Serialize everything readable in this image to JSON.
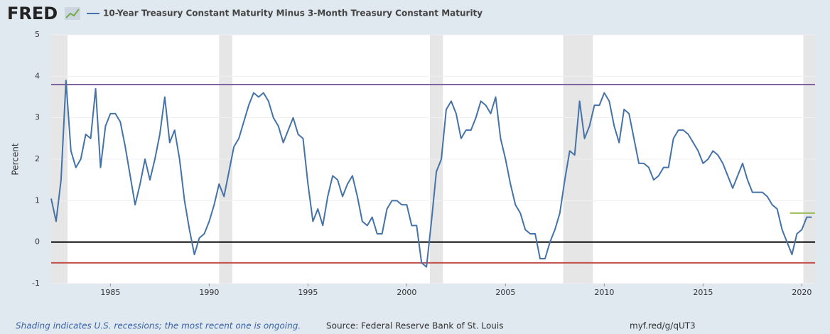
{
  "logo": "FRED",
  "chart_data": {
    "type": "line",
    "series": [
      {
        "name": "10-Year Treasury Constant Maturity Minus 3-Month Treasury Constant Maturity",
        "color": "#4572a7",
        "x": [
          1982,
          1982.25,
          1982.5,
          1982.75,
          1983,
          1983.25,
          1983.5,
          1983.75,
          1984,
          1984.25,
          1984.5,
          1984.75,
          1985,
          1985.25,
          1985.5,
          1985.75,
          1986,
          1986.25,
          1986.5,
          1986.75,
          1987,
          1987.25,
          1987.5,
          1987.75,
          1988,
          1988.25,
          1988.5,
          1988.75,
          1989,
          1989.25,
          1989.5,
          1989.75,
          1990,
          1990.25,
          1990.5,
          1990.75,
          1991,
          1991.25,
          1991.5,
          1991.75,
          1992,
          1992.25,
          1992.5,
          1992.75,
          1993,
          1993.25,
          1993.5,
          1993.75,
          1994,
          1994.25,
          1994.5,
          1994.75,
          1995,
          1995.25,
          1995.5,
          1995.75,
          1996,
          1996.25,
          1996.5,
          1996.75,
          1997,
          1997.25,
          1997.5,
          1997.75,
          1998,
          1998.25,
          1998.5,
          1998.75,
          1999,
          1999.25,
          1999.5,
          1999.75,
          2000,
          2000.25,
          2000.5,
          2000.75,
          2001,
          2001.25,
          2001.5,
          2001.75,
          2002,
          2002.25,
          2002.5,
          2002.75,
          2003,
          2003.25,
          2003.5,
          2003.75,
          2004,
          2004.25,
          2004.5,
          2004.75,
          2005,
          2005.25,
          2005.5,
          2005.75,
          2006,
          2006.25,
          2006.5,
          2006.75,
          2007,
          2007.25,
          2007.5,
          2007.75,
          2008,
          2008.25,
          2008.5,
          2008.75,
          2009,
          2009.25,
          2009.5,
          2009.75,
          2010,
          2010.25,
          2010.5,
          2010.75,
          2011,
          2011.25,
          2011.5,
          2011.75,
          2012,
          2012.25,
          2012.5,
          2012.75,
          2013,
          2013.25,
          2013.5,
          2013.75,
          2014,
          2014.25,
          2014.5,
          2014.75,
          2015,
          2015.25,
          2015.5,
          2015.75,
          2016,
          2016.25,
          2016.5,
          2016.75,
          2017,
          2017.25,
          2017.5,
          2017.75,
          2018,
          2018.25,
          2018.5,
          2018.75,
          2019,
          2019.25,
          2019.5,
          2019.75,
          2020,
          2020.25,
          2020.5
        ],
        "values": [
          1.05,
          0.5,
          1.5,
          3.9,
          2.2,
          1.8,
          2.0,
          2.6,
          2.5,
          3.7,
          1.8,
          2.8,
          3.1,
          3.1,
          2.9,
          2.3,
          1.6,
          0.9,
          1.4,
          2.0,
          1.5,
          2.0,
          2.6,
          3.5,
          2.4,
          2.7,
          2.0,
          1.0,
          0.3,
          -0.3,
          0.1,
          0.2,
          0.5,
          0.9,
          1.4,
          1.1,
          1.7,
          2.3,
          2.5,
          2.9,
          3.3,
          3.6,
          3.5,
          3.6,
          3.4,
          3.0,
          2.8,
          2.4,
          2.7,
          3.0,
          2.6,
          2.5,
          1.4,
          0.5,
          0.8,
          0.4,
          1.1,
          1.6,
          1.5,
          1.1,
          1.4,
          1.6,
          1.1,
          0.5,
          0.4,
          0.6,
          0.2,
          0.2,
          0.8,
          1.0,
          1.0,
          0.9,
          0.9,
          0.4,
          0.4,
          -0.5,
          -0.6,
          0.5,
          1.7,
          2.0,
          3.2,
          3.4,
          3.1,
          2.5,
          2.7,
          2.7,
          3.0,
          3.4,
          3.3,
          3.1,
          3.5,
          2.5,
          2.0,
          1.4,
          0.9,
          0.7,
          0.3,
          0.2,
          0.2,
          -0.4,
          -0.4,
          0.0,
          0.3,
          0.7,
          1.5,
          2.2,
          2.1,
          3.4,
          2.5,
          2.8,
          3.3,
          3.3,
          3.6,
          3.4,
          2.8,
          2.4,
          3.2,
          3.1,
          2.5,
          1.9,
          1.9,
          1.8,
          1.5,
          1.6,
          1.8,
          1.8,
          2.5,
          2.7,
          2.7,
          2.6,
          2.4,
          2.2,
          1.9,
          2.0,
          2.2,
          2.1,
          1.9,
          1.6,
          1.3,
          1.6,
          1.9,
          1.5,
          1.2,
          1.2,
          1.2,
          1.1,
          0.9,
          0.8,
          0.3,
          0.0,
          -0.3,
          0.2,
          0.3,
          0.6,
          0.6
        ]
      }
    ],
    "reference_lines": [
      {
        "value": 3.8,
        "color": "#8064a2"
      },
      {
        "value": 0,
        "color": "#000000"
      },
      {
        "value": -0.5,
        "color": "#c0504d"
      },
      {
        "value": 0.7,
        "color": "#9bbb59",
        "xrange": [
          2019.4,
          2020.67
        ]
      }
    ],
    "recessions": [
      [
        1982,
        1982.83
      ],
      [
        1990.5,
        1991.17
      ],
      [
        2001.17,
        2001.83
      ],
      [
        2007.92,
        2009.42
      ],
      [
        2020.08,
        2020.67
      ]
    ],
    "ylabel": "Percent",
    "xlim": [
      1982,
      2020.67
    ],
    "ylim": [
      -1,
      5
    ],
    "xticks": [
      1985,
      1990,
      1995,
      2000,
      2005,
      2010,
      2015,
      2020
    ],
    "yticks": [
      -1,
      0,
      1,
      2,
      3,
      4,
      5
    ],
    "grid": true
  },
  "footer": {
    "note": "Shading indicates U.S. recessions; the most recent one is ongoing.",
    "source": "Source: Federal Reserve Bank of St. Louis",
    "url": "myf.red/g/qUT3"
  }
}
